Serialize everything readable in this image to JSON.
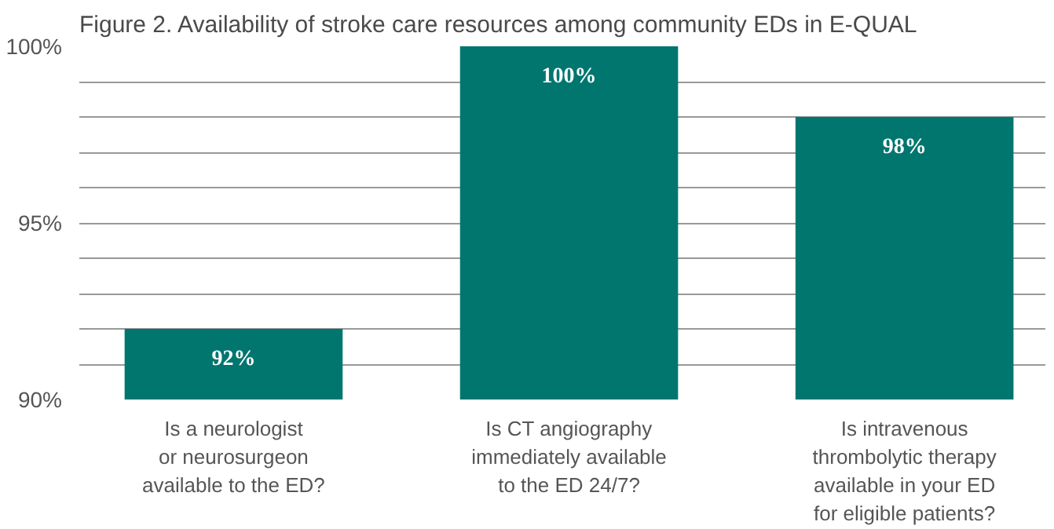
{
  "chart_data": {
    "type": "bar",
    "title": "Figure 2. Availability of stroke care resources among community EDs in E-QUAL",
    "categories": [
      "Is a neurologist\nor neurosurgeon\navailable to the ED?",
      "Is CT angiography\nimmediately available\nto the ED 24/7?",
      "Is intravenous\nthrombolytic therapy\navailable in your ED\nfor eligible patients?"
    ],
    "values": [
      92,
      100,
      98
    ],
    "color": "#00766f",
    "value_labels": [
      "92%",
      "100%",
      "98%"
    ],
    "ylim": [
      90,
      100
    ],
    "yticks": [
      {
        "value": 90,
        "label": "90%"
      },
      {
        "value": 91,
        "label": null
      },
      {
        "value": 92,
        "label": null
      },
      {
        "value": 93,
        "label": null
      },
      {
        "value": 94,
        "label": null
      },
      {
        "value": 95,
        "label": "95%"
      },
      {
        "value": 96,
        "label": null
      },
      {
        "value": 97,
        "label": null
      },
      {
        "value": 98,
        "label": null
      },
      {
        "value": 99,
        "label": null
      },
      {
        "value": 100,
        "label": "100%"
      }
    ],
    "grid": "y"
  }
}
